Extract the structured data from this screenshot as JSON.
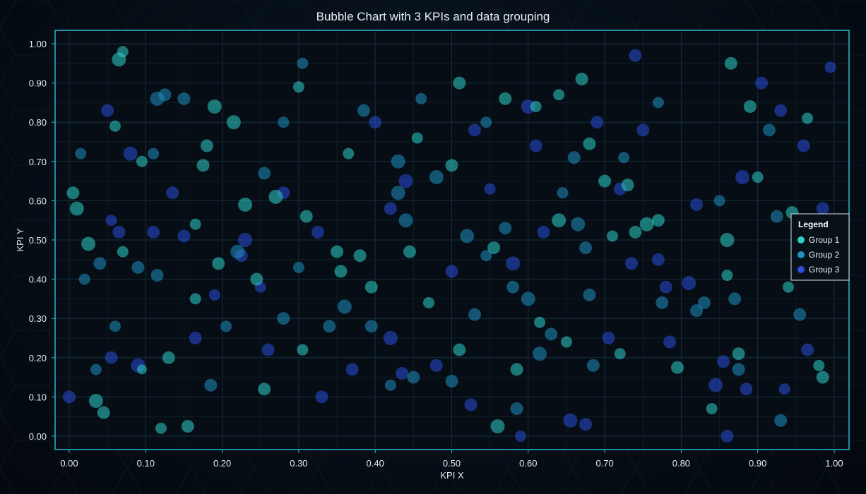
{
  "chart_data": {
    "type": "scatter",
    "title": "Bubble Chart with 3 KPIs and data grouping",
    "xlabel": "KPI X",
    "ylabel": "KPI Y",
    "xlim": [
      0,
      1
    ],
    "ylim": [
      0,
      1
    ],
    "x_ticks": [
      "0.00",
      "0.10",
      "0.20",
      "0.30",
      "0.40",
      "0.50",
      "0.60",
      "0.70",
      "0.80",
      "0.90",
      "1.00"
    ],
    "y_ticks": [
      "0.00",
      "0.10",
      "0.20",
      "0.30",
      "0.40",
      "0.50",
      "0.60",
      "0.70",
      "0.80",
      "0.90",
      "1.00"
    ],
    "grid": true,
    "legend": {
      "title": "Legend",
      "position": "right",
      "entries": [
        {
          "name": "Group 1",
          "color": "#2fd0c8"
        },
        {
          "name": "Group 2",
          "color": "#1f8fc0"
        },
        {
          "name": "Group 3",
          "color": "#2a4fd8"
        }
      ]
    },
    "series": [
      {
        "name": "Group 1",
        "color": "#2fd0c8",
        "points": [
          [
            0.005,
            0.62,
            9
          ],
          [
            0.01,
            0.58,
            10
          ],
          [
            0.025,
            0.49,
            10
          ],
          [
            0.065,
            0.96,
            10
          ],
          [
            0.07,
            0.98,
            8
          ],
          [
            0.06,
            0.79,
            8
          ],
          [
            0.07,
            0.47,
            8
          ],
          [
            0.035,
            0.09,
            10
          ],
          [
            0.045,
            0.06,
            9
          ],
          [
            0.19,
            0.84,
            10
          ],
          [
            0.215,
            0.8,
            10
          ],
          [
            0.23,
            0.59,
            10
          ],
          [
            0.175,
            0.69,
            9
          ],
          [
            0.18,
            0.74,
            9
          ],
          [
            0.165,
            0.54,
            8
          ],
          [
            0.3,
            0.89,
            8
          ],
          [
            0.31,
            0.56,
            9
          ],
          [
            0.27,
            0.61,
            10
          ],
          [
            0.35,
            0.47,
            9
          ],
          [
            0.355,
            0.42,
            9
          ],
          [
            0.38,
            0.46,
            9
          ],
          [
            0.395,
            0.38,
            9
          ],
          [
            0.255,
            0.12,
            9
          ],
          [
            0.155,
            0.025,
            9
          ],
          [
            0.12,
            0.02,
            8
          ],
          [
            0.13,
            0.2,
            9
          ],
          [
            0.245,
            0.4,
            9
          ],
          [
            0.5,
            0.69,
            9
          ],
          [
            0.51,
            0.9,
            9
          ],
          [
            0.57,
            0.86,
            9
          ],
          [
            0.555,
            0.48,
            9
          ],
          [
            0.585,
            0.17,
            9
          ],
          [
            0.51,
            0.22,
            9
          ],
          [
            0.56,
            0.025,
            10
          ],
          [
            0.47,
            0.34,
            8
          ],
          [
            0.64,
            0.55,
            10
          ],
          [
            0.67,
            0.91,
            9
          ],
          [
            0.64,
            0.87,
            8
          ],
          [
            0.68,
            0.745,
            9
          ],
          [
            0.7,
            0.65,
            9
          ],
          [
            0.71,
            0.51,
            8
          ],
          [
            0.74,
            0.52,
            9
          ],
          [
            0.755,
            0.54,
            10
          ],
          [
            0.77,
            0.55,
            9
          ],
          [
            0.73,
            0.64,
            9
          ],
          [
            0.795,
            0.175,
            9
          ],
          [
            0.72,
            0.21,
            8
          ],
          [
            0.86,
            0.5,
            10
          ],
          [
            0.865,
            0.95,
            9
          ],
          [
            0.89,
            0.84,
            9
          ],
          [
            0.9,
            0.66,
            8
          ],
          [
            0.945,
            0.57,
            9
          ],
          [
            0.94,
            0.38,
            8
          ],
          [
            0.985,
            0.15,
            9
          ],
          [
            0.98,
            0.18,
            8
          ],
          [
            0.965,
            0.81,
            8
          ],
          [
            0.61,
            0.84,
            8
          ],
          [
            0.445,
            0.47,
            9
          ],
          [
            0.455,
            0.76,
            8
          ],
          [
            0.365,
            0.72,
            8
          ],
          [
            0.095,
            0.7,
            8
          ],
          [
            0.165,
            0.35,
            8
          ],
          [
            0.195,
            0.44,
            9
          ],
          [
            0.305,
            0.22,
            8
          ],
          [
            0.095,
            0.17,
            7
          ],
          [
            0.875,
            0.21,
            9
          ],
          [
            0.86,
            0.41,
            8
          ],
          [
            0.65,
            0.24,
            8
          ],
          [
            0.615,
            0.29,
            8
          ],
          [
            0.84,
            0.07,
            8
          ]
        ]
      },
      {
        "name": "Group 2",
        "color": "#1f8fc0",
        "points": [
          [
            0.115,
            0.86,
            10
          ],
          [
            0.125,
            0.87,
            9
          ],
          [
            0.09,
            0.43,
            9
          ],
          [
            0.04,
            0.44,
            9
          ],
          [
            0.15,
            0.86,
            9
          ],
          [
            0.11,
            0.72,
            8
          ],
          [
            0.22,
            0.47,
            10
          ],
          [
            0.255,
            0.67,
            9
          ],
          [
            0.28,
            0.8,
            8
          ],
          [
            0.34,
            0.28,
            9
          ],
          [
            0.36,
            0.33,
            10
          ],
          [
            0.43,
            0.7,
            10
          ],
          [
            0.43,
            0.62,
            10
          ],
          [
            0.48,
            0.66,
            10
          ],
          [
            0.44,
            0.55,
            10
          ],
          [
            0.52,
            0.51,
            10
          ],
          [
            0.57,
            0.53,
            9
          ],
          [
            0.58,
            0.38,
            9
          ],
          [
            0.6,
            0.35,
            10
          ],
          [
            0.615,
            0.21,
            10
          ],
          [
            0.63,
            0.26,
            9
          ],
          [
            0.545,
            0.46,
            8
          ],
          [
            0.53,
            0.31,
            9
          ],
          [
            0.66,
            0.71,
            9
          ],
          [
            0.665,
            0.54,
            10
          ],
          [
            0.675,
            0.48,
            9
          ],
          [
            0.68,
            0.36,
            9
          ],
          [
            0.82,
            0.32,
            9
          ],
          [
            0.83,
            0.34,
            9
          ],
          [
            0.85,
            0.6,
            8
          ],
          [
            0.87,
            0.35,
            9
          ],
          [
            0.915,
            0.78,
            9
          ],
          [
            0.925,
            0.56,
            9
          ],
          [
            0.955,
            0.31,
            9
          ],
          [
            0.99,
            0.45,
            9
          ],
          [
            0.93,
            0.04,
            9
          ],
          [
            0.875,
            0.17,
            9
          ],
          [
            0.775,
            0.34,
            9
          ],
          [
            0.725,
            0.71,
            8
          ],
          [
            0.77,
            0.85,
            8
          ],
          [
            0.685,
            0.18,
            9
          ],
          [
            0.585,
            0.07,
            9
          ],
          [
            0.5,
            0.14,
            9
          ],
          [
            0.45,
            0.15,
            9
          ],
          [
            0.42,
            0.13,
            8
          ],
          [
            0.395,
            0.28,
            9
          ],
          [
            0.3,
            0.43,
            8
          ],
          [
            0.28,
            0.3,
            9
          ],
          [
            0.205,
            0.28,
            8
          ],
          [
            0.185,
            0.13,
            9
          ],
          [
            0.115,
            0.41,
            9
          ],
          [
            0.06,
            0.28,
            8
          ],
          [
            0.035,
            0.17,
            8
          ],
          [
            0.02,
            0.4,
            8
          ],
          [
            0.015,
            0.72,
            8
          ],
          [
            0.305,
            0.95,
            8
          ],
          [
            0.385,
            0.83,
            9
          ],
          [
            0.46,
            0.86,
            8
          ],
          [
            0.545,
            0.8,
            8
          ],
          [
            0.645,
            0.62,
            8
          ]
        ]
      },
      {
        "name": "Group 3",
        "color": "#2a4fd8",
        "points": [
          [
            0.08,
            0.72,
            10
          ],
          [
            0.05,
            0.83,
            9
          ],
          [
            0.065,
            0.52,
            9
          ],
          [
            0.11,
            0.52,
            9
          ],
          [
            0.15,
            0.51,
            9
          ],
          [
            0.135,
            0.62,
            9
          ],
          [
            0.23,
            0.5,
            10
          ],
          [
            0.225,
            0.46,
            9
          ],
          [
            0.28,
            0.62,
            9
          ],
          [
            0.42,
            0.58,
            9
          ],
          [
            0.44,
            0.65,
            10
          ],
          [
            0.4,
            0.8,
            9
          ],
          [
            0.53,
            0.78,
            9
          ],
          [
            0.6,
            0.84,
            10
          ],
          [
            0.61,
            0.74,
            9
          ],
          [
            0.58,
            0.44,
            10
          ],
          [
            0.62,
            0.52,
            9
          ],
          [
            0.69,
            0.8,
            9
          ],
          [
            0.72,
            0.63,
            9
          ],
          [
            0.77,
            0.45,
            9
          ],
          [
            0.78,
            0.38,
            9
          ],
          [
            0.81,
            0.39,
            10
          ],
          [
            0.82,
            0.59,
            9
          ],
          [
            0.88,
            0.66,
            10
          ],
          [
            0.905,
            0.9,
            9
          ],
          [
            0.93,
            0.83,
            9
          ],
          [
            0.96,
            0.74,
            9
          ],
          [
            0.985,
            0.58,
            9
          ],
          [
            0.995,
            0.94,
            8
          ],
          [
            0.965,
            0.22,
            9
          ],
          [
            0.885,
            0.12,
            9
          ],
          [
            0.845,
            0.13,
            10
          ],
          [
            0.86,
            0.0,
            9
          ],
          [
            0.785,
            0.24,
            9
          ],
          [
            0.655,
            0.04,
            10
          ],
          [
            0.675,
            0.03,
            9
          ],
          [
            0.59,
            0.0,
            8
          ],
          [
            0.525,
            0.08,
            9
          ],
          [
            0.48,
            0.18,
            9
          ],
          [
            0.42,
            0.25,
            10
          ],
          [
            0.435,
            0.16,
            9
          ],
          [
            0.37,
            0.17,
            9
          ],
          [
            0.33,
            0.1,
            9
          ],
          [
            0.26,
            0.22,
            9
          ],
          [
            0.165,
            0.25,
            9
          ],
          [
            0.09,
            0.18,
            10
          ],
          [
            0.055,
            0.2,
            9
          ],
          [
            0.0,
            0.1,
            9
          ],
          [
            0.055,
            0.55,
            8
          ],
          [
            0.19,
            0.36,
            8
          ],
          [
            0.25,
            0.38,
            8
          ],
          [
            0.325,
            0.52,
            9
          ],
          [
            0.5,
            0.42,
            9
          ],
          [
            0.55,
            0.63,
            8
          ],
          [
            0.705,
            0.25,
            9
          ],
          [
            0.735,
            0.44,
            9
          ],
          [
            0.75,
            0.78,
            9
          ],
          [
            0.855,
            0.19,
            9
          ],
          [
            0.935,
            0.12,
            8
          ],
          [
            0.74,
            0.97,
            9
          ]
        ]
      }
    ]
  }
}
